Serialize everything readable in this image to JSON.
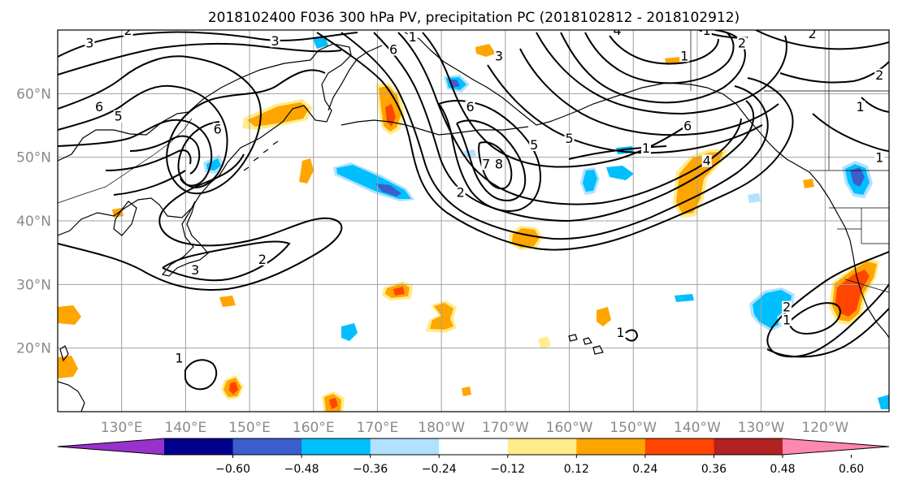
{
  "title": "2018102400 F036 300 hPa PV, precipitation PC (2018102812 - 2018102912)",
  "map": {
    "lon_range": [
      120,
      250
    ],
    "lat_range": [
      10,
      70
    ],
    "lat_labels": [
      {
        "lat": 60,
        "text": "60°N"
      },
      {
        "lat": 50,
        "text": "50°N"
      },
      {
        "lat": 40,
        "text": "40°N"
      },
      {
        "lat": 30,
        "text": "30°N"
      },
      {
        "lat": 20,
        "text": "20°N"
      }
    ],
    "lon_labels": [
      {
        "lon": 130,
        "text": "130°E"
      },
      {
        "lon": 140,
        "text": "140°E"
      },
      {
        "lon": 150,
        "text": "150°E"
      },
      {
        "lon": 160,
        "text": "160°E"
      },
      {
        "lon": 170,
        "text": "170°E"
      },
      {
        "lon": 180,
        "text": "180°W"
      },
      {
        "lon": 190,
        "text": "170°W"
      },
      {
        "lon": 200,
        "text": "160°W"
      },
      {
        "lon": 210,
        "text": "150°W"
      },
      {
        "lon": 220,
        "text": "140°W"
      },
      {
        "lon": 230,
        "text": "130°W"
      },
      {
        "lon": 240,
        "text": "120°W"
      }
    ]
  },
  "colorbar": {
    "colors": [
      "#9932cc",
      "#00008b",
      "#3a5fcd",
      "#00bfff",
      "#b0e2ff",
      "#ffffff",
      "#ffec8b",
      "#ffa500",
      "#ff4500",
      "#b22222",
      "#ff88b0"
    ],
    "tick_labels": [
      "−0.60",
      "−0.48",
      "−0.36",
      "−0.24",
      "−0.12",
      "0.12",
      "0.24",
      "0.36",
      "0.48",
      "0.60"
    ]
  },
  "pv_contour_labels": [
    {
      "text": "3",
      "lon": 125,
      "lat": 67.5
    },
    {
      "text": "2",
      "lon": 131,
      "lat": 69.5
    },
    {
      "text": "3",
      "lon": 154,
      "lat": 67.8
    },
    {
      "text": "6",
      "lon": 126.5,
      "lat": 57.5
    },
    {
      "text": "5",
      "lon": 129.5,
      "lat": 56
    },
    {
      "text": "6",
      "lon": 145,
      "lat": 54
    },
    {
      "text": "6",
      "lon": 172.5,
      "lat": 66.5
    },
    {
      "text": "1",
      "lon": 175.5,
      "lat": 68.5
    },
    {
      "text": "6",
      "lon": 184.5,
      "lat": 57.5
    },
    {
      "text": "3",
      "lon": 189,
      "lat": 65.5
    },
    {
      "text": "8",
      "lon": 189,
      "lat": 48.5
    },
    {
      "text": "7",
      "lon": 187,
      "lat": 48.5
    },
    {
      "text": "5",
      "lon": 194.5,
      "lat": 51.5
    },
    {
      "text": "2",
      "lon": 183,
      "lat": 44
    },
    {
      "text": "4",
      "lon": 207.5,
      "lat": 69.5
    },
    {
      "text": "5",
      "lon": 200,
      "lat": 52.5
    },
    {
      "text": "6",
      "lon": 218.5,
      "lat": 54.5
    },
    {
      "text": "1",
      "lon": 218,
      "lat": 65.5
    },
    {
      "text": "1",
      "lon": 212,
      "lat": 51
    },
    {
      "text": "2",
      "lon": 227,
      "lat": 67.5
    },
    {
      "text": "2",
      "lon": 238,
      "lat": 69
    },
    {
      "text": "1",
      "lon": 221.5,
      "lat": 69.5
    },
    {
      "text": "4",
      "lon": 221.5,
      "lat": 49
    },
    {
      "text": "2",
      "lon": 248.5,
      "lat": 62.5
    },
    {
      "text": "1",
      "lon": 245.5,
      "lat": 57.5
    },
    {
      "text": "1",
      "lon": 248.5,
      "lat": 49.5
    },
    {
      "text": "2",
      "lon": 152,
      "lat": 33.5
    },
    {
      "text": "3",
      "lon": 141.5,
      "lat": 31.8
    },
    {
      "text": "2",
      "lon": 234,
      "lat": 26
    },
    {
      "text": "1",
      "lon": 234,
      "lat": 24
    },
    {
      "text": "1",
      "lon": 139,
      "lat": 18
    },
    {
      "text": "1",
      "lon": 208,
      "lat": 22
    }
  ]
}
